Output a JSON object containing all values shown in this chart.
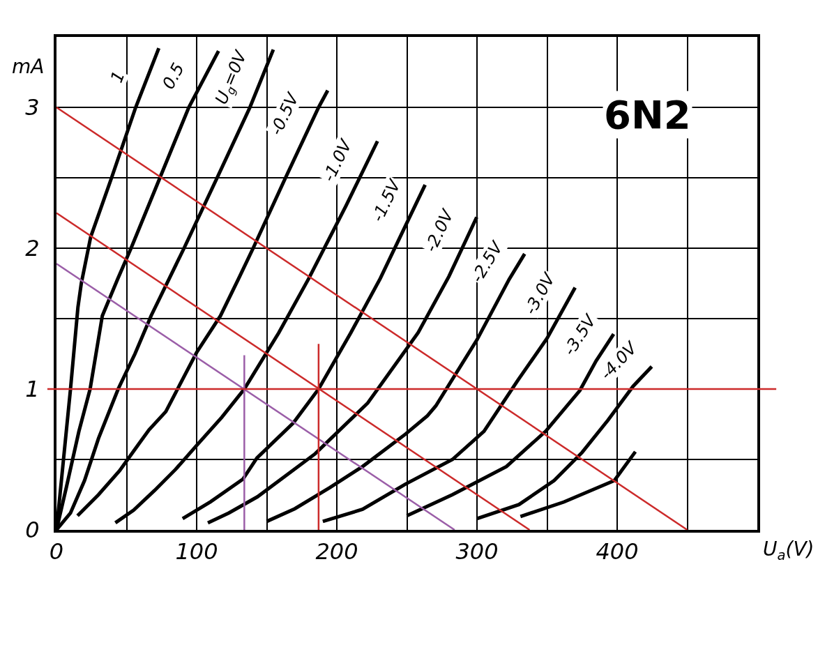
{
  "chart_data": {
    "type": "line",
    "title": "6N2",
    "xlabel": "U$_{a}$(V)",
    "ylabel": "mA",
    "xlim": [
      0,
      500
    ],
    "xticks": [
      0,
      {
        "value": 50,
        "label": null
      },
      100,
      {
        "value": 150,
        "label": null
      },
      200,
      {
        "value": 250,
        "label": null
      },
      300,
      {
        "value": 350,
        "label": null
      },
      400,
      {
        "value": 450,
        "label": null
      }
    ],
    "ylim": [
      0,
      3.5
    ],
    "yticks": [
      0,
      {
        "value": 0.5,
        "label": null
      },
      1,
      {
        "value": 1.5,
        "label": null
      },
      2,
      {
        "value": 2.5,
        "label": null
      },
      3
    ],
    "grid": true,
    "line_style": "solid",
    "series": [
      {
        "name": "1",
        "color": "#000000",
        "x": [
          0,
          3,
          6,
          10,
          15.3,
          17.7,
          24.4,
          39.3,
          56.5,
          73
        ],
        "values": [
          0,
          0.3,
          0.6,
          1.0,
          1.58,
          1.75,
          2.08,
          2.5,
          3.0,
          3.42
        ]
      },
      {
        "name": "0.5",
        "color": "#000000",
        "x": [
          0,
          7,
          16,
          24,
          32.7,
          43.8,
          53.2,
          73.8,
          94.4,
          115.6
        ],
        "values": [
          0,
          0.3,
          0.7,
          1.0,
          1.52,
          1.785,
          2.0,
          2.5,
          3.0,
          3.4
        ]
      },
      {
        "name": "U$_{g}$=0V",
        "color": "#000000",
        "x": [
          0,
          10,
          20,
          30,
          44,
          56,
          67.5,
          80.5,
          91,
          114.6,
          138,
          154.7
        ],
        "values": [
          0,
          0.12,
          0.35,
          0.65,
          1.0,
          1.25,
          1.52,
          1.785,
          2.0,
          2.5,
          3.0,
          3.41
        ]
      },
      {
        "name": "-0.5V",
        "color": "#000000",
        "x": [
          15,
          30,
          45,
          58,
          66,
          78,
          100,
          117,
          130,
          140.3,
          163.4,
          187,
          193.5
        ],
        "values": [
          0.1,
          0.25,
          0.42,
          0.6,
          0.71,
          0.84,
          1.26,
          1.52,
          1.785,
          2.0,
          2.5,
          3.0,
          3.12
        ]
      },
      {
        "name": "-1.0V",
        "color": "#000000",
        "x": [
          42,
          55,
          70,
          85,
          100,
          118,
          134,
          158.6,
          180,
          206.5,
          229
        ],
        "values": [
          0.05,
          0.14,
          0.28,
          0.43,
          0.6,
          0.8,
          1.0,
          1.4,
          1.785,
          2.3,
          2.76
        ]
      },
      {
        "name": "-1.5V",
        "color": "#000000",
        "x": [
          90,
          110,
          133,
          143,
          169,
          187,
          210,
          231,
          249.5,
          263
        ],
        "values": [
          0.08,
          0.2,
          0.36,
          0.51,
          0.76,
          1.0,
          1.4,
          1.785,
          2.17,
          2.45
        ]
      },
      {
        "name": "-2.0V",
        "color": "#000000",
        "x": [
          108,
          123,
          143.4,
          184.5,
          222,
          258,
          280,
          299.8
        ],
        "values": [
          0.05,
          0.12,
          0.235,
          0.54,
          0.9,
          1.4,
          1.8,
          2.22
        ]
      },
      {
        "name": "-2.5V",
        "color": "#000000",
        "x": [
          150,
          170,
          195,
          218.4,
          249,
          264.6,
          270.6,
          300,
          323,
          334
        ],
        "values": [
          0.06,
          0.15,
          0.3,
          0.45,
          0.68,
          0.81,
          0.88,
          1.35,
          1.78,
          1.96
        ]
      },
      {
        "name": "-3.0V",
        "color": "#000000",
        "x": [
          190,
          218.4,
          249,
          282.5,
          305,
          329,
          350,
          370
        ],
        "values": [
          0.06,
          0.146,
          0.325,
          0.5,
          0.7,
          1.06,
          1.36,
          1.72
        ]
      },
      {
        "name": "-3.5V",
        "color": "#000000",
        "x": [
          250,
          282.5,
          321,
          349,
          373.4,
          385,
          397.5
        ],
        "values": [
          0.1,
          0.25,
          0.45,
          0.7,
          0.99,
          1.2,
          1.39
        ]
      },
      {
        "name": "-4.0V",
        "color": "#000000",
        "x": [
          300,
          330,
          355,
          375,
          393.5,
          411.4,
          424.7
        ],
        "values": [
          0.08,
          0.18,
          0.35,
          0.55,
          0.78,
          1.02,
          1.16
        ]
      },
      {
        "color": "#000000",
        "x": [
          331,
          362,
          398,
          413
        ],
        "values": [
          0.095,
          0.198,
          0.35,
          0.555
        ]
      },
      {
        "color": "#cc2a2a",
        "x": [
          0,
          450
        ],
        "values": [
          3,
          0
        ]
      },
      {
        "color": "#cc2a2a",
        "x": [
          0,
          337.5
        ],
        "values": [
          2.25,
          0
        ]
      },
      {
        "color": "#9b5ea8",
        "x": [
          0,
          284
        ],
        "values": [
          1.89,
          0
        ]
      },
      {
        "color": "#cc2a2a",
        "x": [
          187,
          187
        ],
        "values": [
          0,
          1.32
        ]
      },
      {
        "color": "#9b5ea8",
        "x": [
          134,
          134
        ],
        "values": [
          0,
          1.24
        ]
      }
    ],
    "ref_lines": [
      {
        "axis": "y",
        "value": 1,
        "color": "#cc2a2a"
      }
    ]
  }
}
